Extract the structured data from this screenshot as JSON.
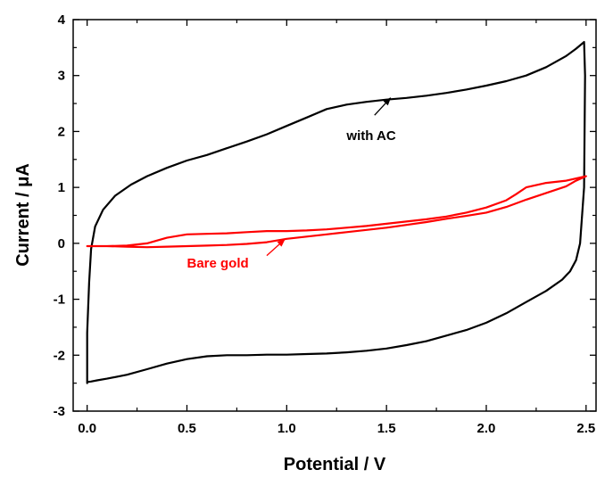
{
  "chart_data": {
    "type": "line",
    "xlabel": "Potential / V",
    "ylabel": "Current / μA",
    "xlim": [
      -0.07,
      2.55
    ],
    "ylim": [
      -3,
      4
    ],
    "xticks": [
      0.0,
      0.5,
      1.0,
      1.5,
      2.0,
      2.5
    ],
    "xtick_labels": [
      "0.0",
      "0.5",
      "1.0",
      "1.5",
      "2.0",
      "2.5"
    ],
    "yticks": [
      -3,
      -2,
      -1,
      0,
      1,
      2,
      3,
      4
    ],
    "ytick_labels": [
      "-3",
      "-2",
      "-1",
      "0",
      "1",
      "2",
      "3",
      "4"
    ],
    "grid": false,
    "series": [
      {
        "color": "#000000",
        "x": [
          0.0,
          0.0,
          0.01,
          0.02,
          0.04,
          0.08,
          0.14,
          0.22,
          0.3,
          0.4,
          0.5,
          0.6,
          0.7,
          0.8,
          0.9,
          1.0,
          1.1,
          1.2,
          1.3,
          1.4,
          1.5,
          1.6,
          1.7,
          1.8,
          1.9,
          2.0,
          2.1,
          2.2,
          2.3,
          2.4,
          2.45,
          2.49,
          2.495,
          2.49,
          2.47,
          2.45,
          2.42,
          2.38,
          2.3,
          2.2,
          2.1,
          2.0,
          1.9,
          1.8,
          1.7,
          1.6,
          1.5,
          1.4,
          1.3,
          1.2,
          1.1,
          1.0,
          0.9,
          0.8,
          0.7,
          0.6,
          0.5,
          0.4,
          0.3,
          0.2,
          0.1,
          0.05,
          0.02,
          0.0
        ],
        "y": [
          -2.5,
          -1.6,
          -0.7,
          -0.1,
          0.3,
          0.6,
          0.85,
          1.05,
          1.2,
          1.35,
          1.48,
          1.58,
          1.7,
          1.82,
          1.95,
          2.1,
          2.25,
          2.4,
          2.48,
          2.53,
          2.57,
          2.6,
          2.64,
          2.69,
          2.75,
          2.82,
          2.9,
          3.0,
          3.15,
          3.35,
          3.48,
          3.6,
          3.0,
          1.0,
          0.0,
          -0.3,
          -0.5,
          -0.65,
          -0.85,
          -1.05,
          -1.25,
          -1.42,
          -1.55,
          -1.65,
          -1.75,
          -1.82,
          -1.88,
          -1.92,
          -1.95,
          -1.97,
          -1.98,
          -1.99,
          -1.99,
          -2.0,
          -2.0,
          -2.02,
          -2.07,
          -2.15,
          -2.25,
          -2.35,
          -2.42,
          -2.45,
          -2.47,
          -2.48
        ]
      },
      {
        "color": "#ff0000",
        "x": [
          0.0,
          0.1,
          0.2,
          0.3,
          0.4,
          0.5,
          0.6,
          0.7,
          0.8,
          0.9,
          1.0,
          1.1,
          1.2,
          1.3,
          1.4,
          1.5,
          1.6,
          1.7,
          1.8,
          1.9,
          2.0,
          2.1,
          2.15,
          2.2,
          2.3,
          2.4,
          2.5,
          2.45,
          2.4,
          2.3,
          2.2,
          2.1,
          2.0,
          1.9,
          1.8,
          1.7,
          1.6,
          1.5,
          1.4,
          1.3,
          1.2,
          1.1,
          1.0,
          0.9,
          0.8,
          0.7,
          0.6,
          0.5,
          0.4,
          0.3,
          0.2,
          0.1,
          0.0
        ],
        "y": [
          -0.05,
          -0.05,
          -0.04,
          0.0,
          0.1,
          0.16,
          0.17,
          0.18,
          0.2,
          0.22,
          0.22,
          0.23,
          0.25,
          0.28,
          0.31,
          0.35,
          0.39,
          0.43,
          0.48,
          0.55,
          0.64,
          0.77,
          0.88,
          1.0,
          1.08,
          1.12,
          1.2,
          1.12,
          1.02,
          0.9,
          0.78,
          0.65,
          0.55,
          0.49,
          0.44,
          0.38,
          0.33,
          0.28,
          0.24,
          0.2,
          0.16,
          0.12,
          0.08,
          0.02,
          -0.01,
          -0.03,
          -0.04,
          -0.05,
          -0.06,
          -0.07,
          -0.06,
          -0.05,
          -0.05
        ]
      }
    ],
    "annotations": [
      {
        "text": "with AC",
        "color": "#000000",
        "x": 1.3,
        "y": 1.85,
        "arrow_from": [
          1.44,
          2.29
        ],
        "arrow_to": [
          1.52,
          2.6
        ]
      },
      {
        "text": "Bare gold",
        "color": "#ff0000",
        "x": 0.5,
        "y": -0.43,
        "arrow_from": [
          0.9,
          -0.22
        ],
        "arrow_to": [
          0.99,
          0.07
        ]
      }
    ]
  }
}
